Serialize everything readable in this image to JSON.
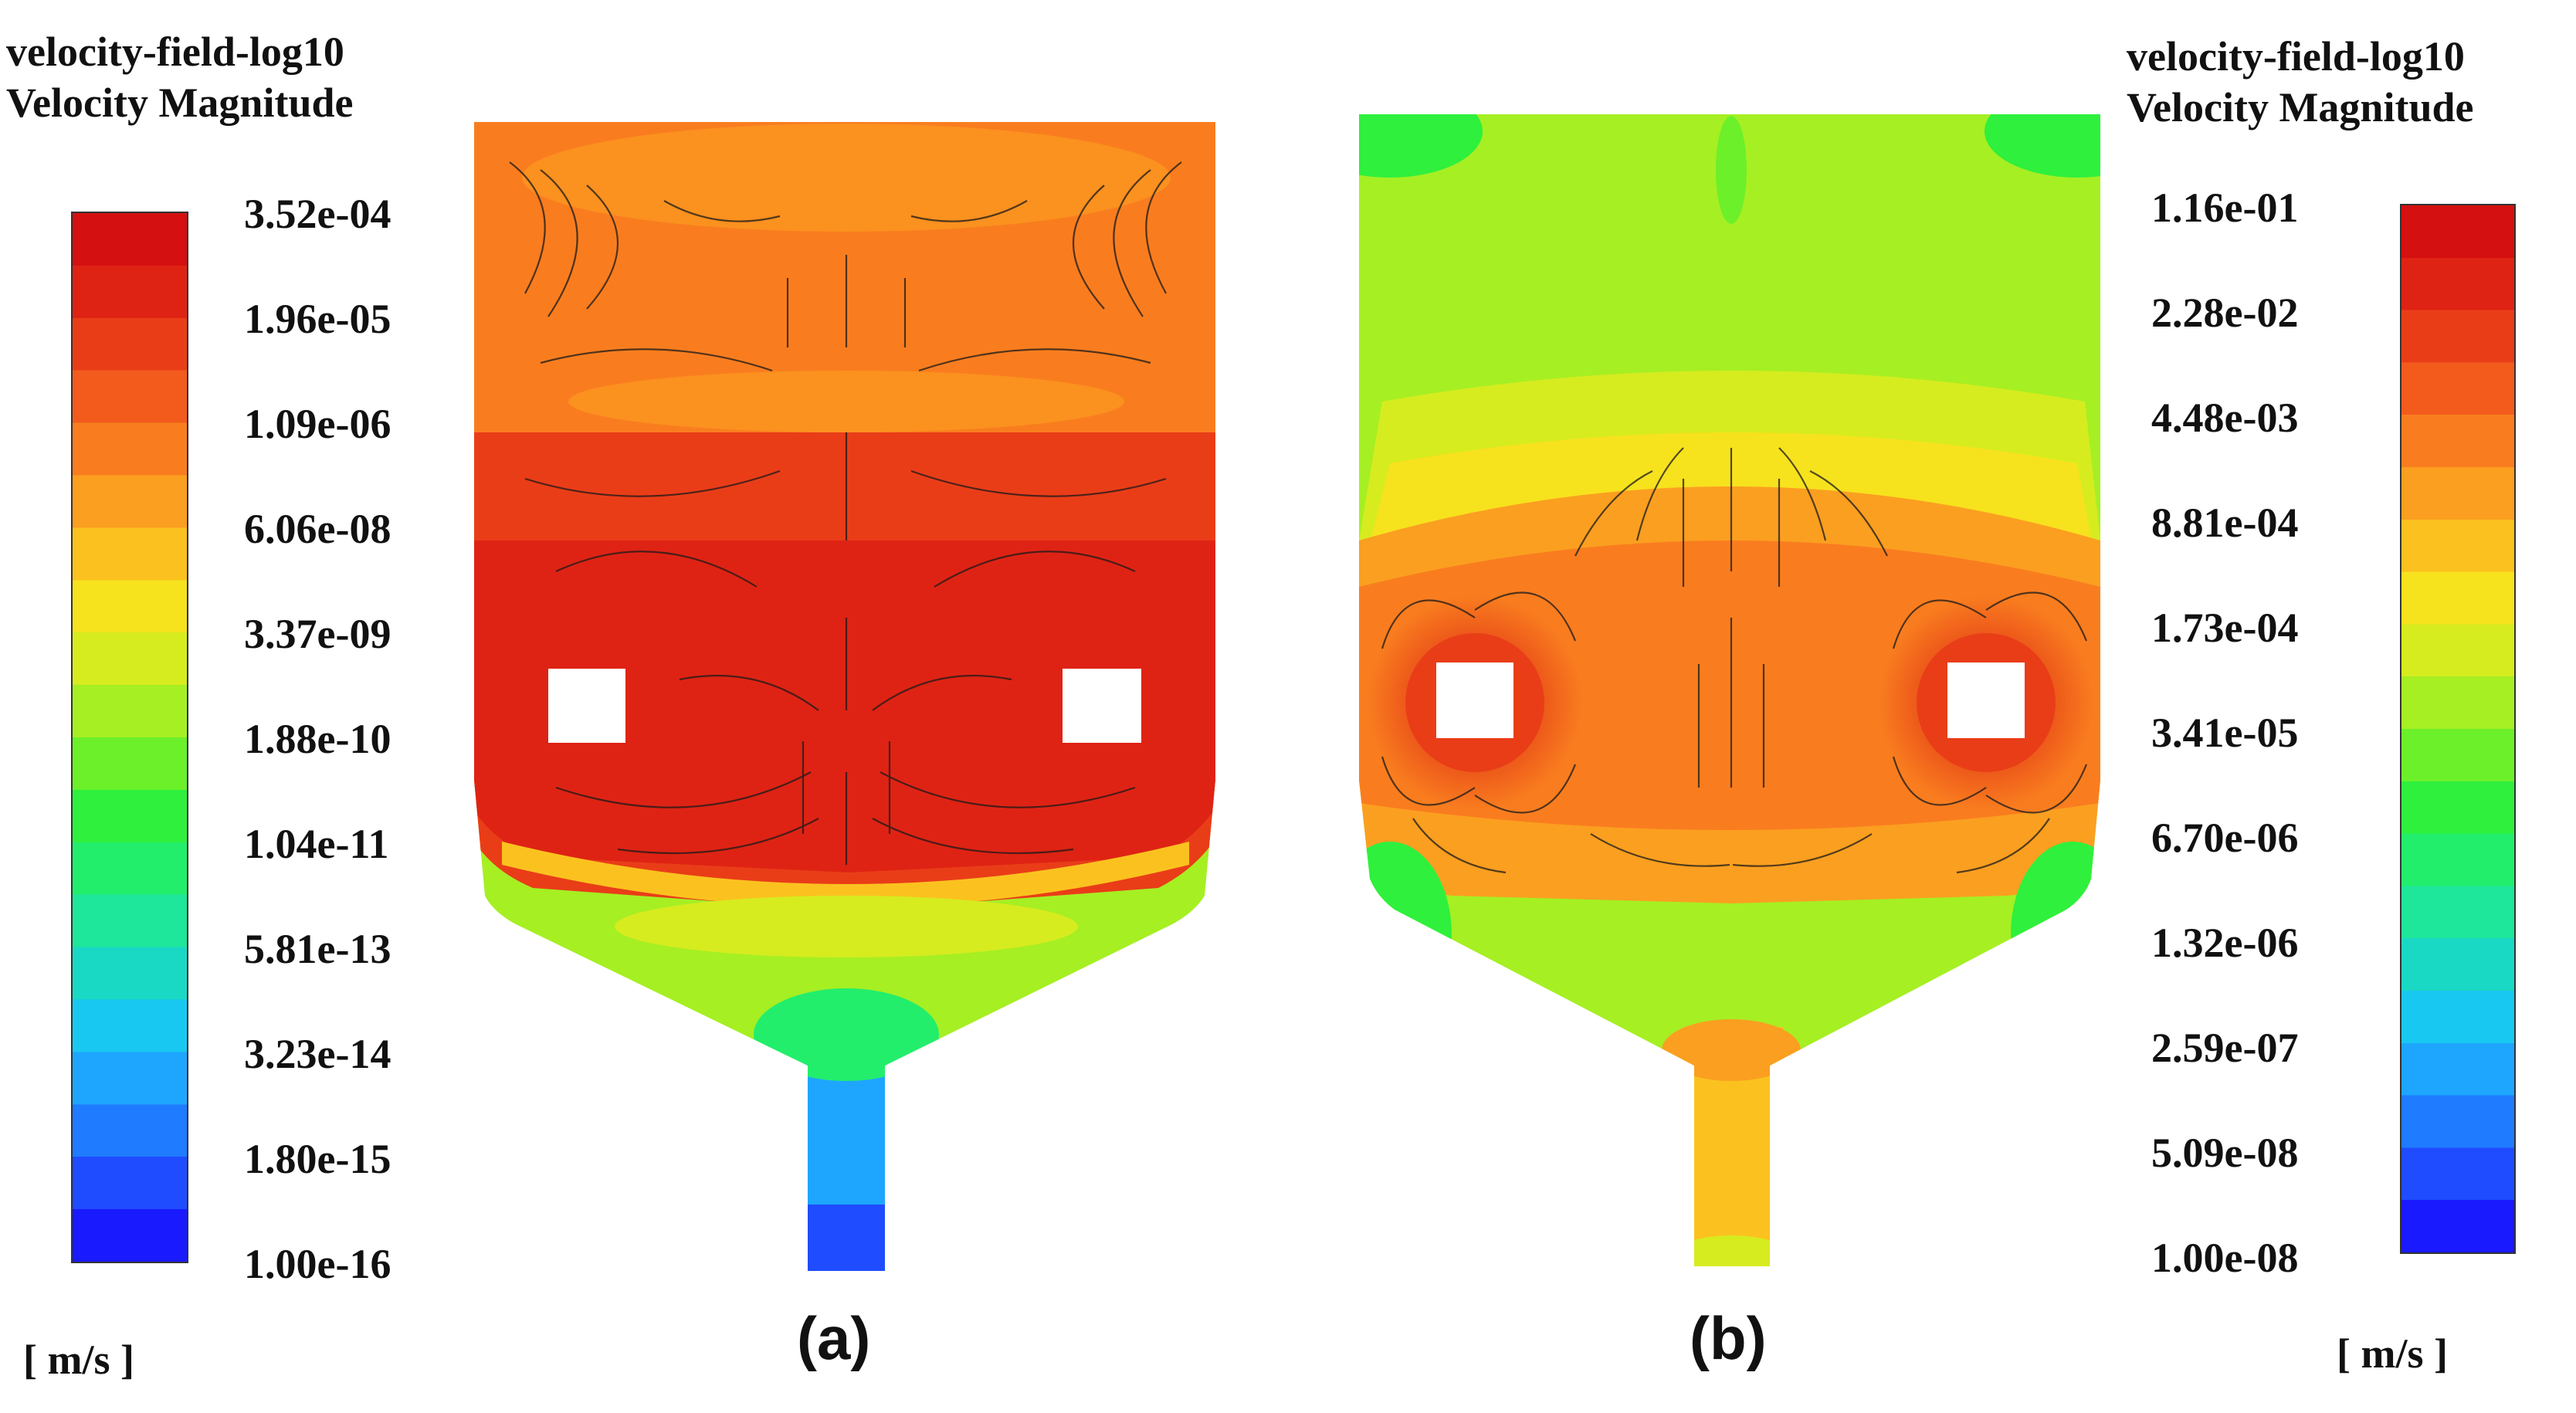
{
  "colormap": [
    "#1a1aff",
    "#1f4cff",
    "#1f7bff",
    "#1ea6ff",
    "#19c8f0",
    "#19d9c4",
    "#1ee69a",
    "#22ee6c",
    "#2ff03d",
    "#6cf02a",
    "#a6ef23",
    "#d6ec1f",
    "#f7e21e",
    "#fbc21f",
    "#fb9f20",
    "#f97d1f",
    "#f25b1c",
    "#e93d18",
    "#de2314",
    "#d41010"
  ],
  "panel_a": {
    "label": "(a)",
    "legend_title_line1": "velocity-field-log10",
    "legend_title_line2": "Velocity Magnitude",
    "unit": "[ m/s ]",
    "ticks": [
      "3.52e-04",
      "1.96e-05",
      "1.09e-06",
      "6.06e-08",
      "3.37e-09",
      "1.88e-10",
      "1.04e-11",
      "5.81e-13",
      "3.23e-14",
      "1.80e-15",
      "1.00e-16"
    ]
  },
  "panel_b": {
    "label": "(b)",
    "legend_title_line1": "velocity-field-log10",
    "legend_title_line2": "Velocity Magnitude",
    "unit": "[ m/s ]",
    "ticks": [
      "1.16e-01",
      "2.28e-02",
      "4.48e-03",
      "8.81e-04",
      "1.73e-04",
      "3.41e-05",
      "6.70e-06",
      "1.32e-06",
      "2.59e-07",
      "5.09e-08",
      "1.00e-08"
    ]
  }
}
